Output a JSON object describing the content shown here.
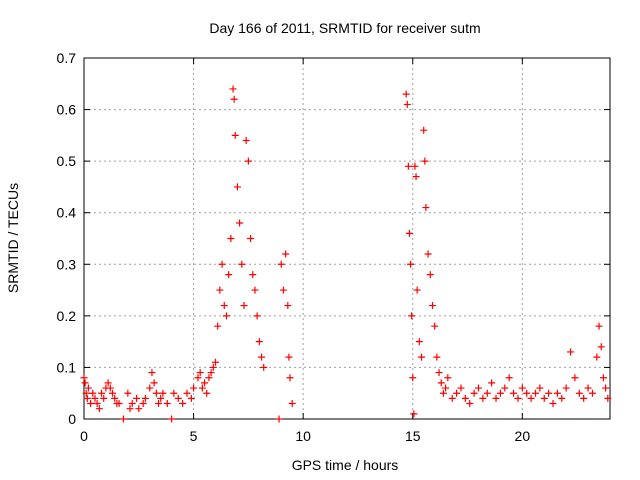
{
  "chart_data": {
    "type": "scatter",
    "title": "Day 166 of 2011, SRMTID for receiver sutm",
    "xlabel": "GPS time / hours",
    "ylabel": "SRMTID / TECUs",
    "xlim": [
      0,
      24
    ],
    "ylim": [
      0,
      0.7
    ],
    "xticks": [
      0,
      5,
      10,
      15,
      20
    ],
    "yticks": [
      0,
      0.1,
      0.2,
      0.3,
      0.4,
      0.5,
      0.6,
      0.7
    ],
    "grid": true,
    "marker": "plus",
    "color": "#ff0000",
    "series": [
      {
        "points": [
          [
            0.0,
            0.08
          ],
          [
            0.05,
            0.07
          ],
          [
            0.1,
            0.05
          ],
          [
            0.15,
            0.04
          ],
          [
            0.2,
            0.06
          ],
          [
            0.3,
            0.03
          ],
          [
            0.4,
            0.05
          ],
          [
            0.5,
            0.04
          ],
          [
            0.6,
            0.03
          ],
          [
            0.7,
            0.02
          ],
          [
            0.8,
            0.05
          ],
          [
            0.9,
            0.04
          ],
          [
            1.0,
            0.06
          ],
          [
            1.1,
            0.07
          ],
          [
            1.2,
            0.06
          ],
          [
            1.3,
            0.05
          ],
          [
            1.4,
            0.04
          ],
          [
            1.5,
            0.03
          ],
          [
            1.6,
            0.03
          ],
          [
            1.8,
            0.0
          ],
          [
            2.0,
            0.05
          ],
          [
            2.1,
            0.02
          ],
          [
            2.2,
            0.03
          ],
          [
            2.4,
            0.04
          ],
          [
            2.5,
            0.02
          ],
          [
            2.7,
            0.03
          ],
          [
            2.8,
            0.04
          ],
          [
            3.0,
            0.06
          ],
          [
            3.1,
            0.09
          ],
          [
            3.2,
            0.07
          ],
          [
            3.3,
            0.05
          ],
          [
            3.4,
            0.03
          ],
          [
            3.5,
            0.04
          ],
          [
            3.6,
            0.05
          ],
          [
            3.8,
            0.03
          ],
          [
            4.0,
            0.0
          ],
          [
            4.1,
            0.05
          ],
          [
            4.3,
            0.04
          ],
          [
            4.5,
            0.03
          ],
          [
            4.7,
            0.05
          ],
          [
            4.9,
            0.04
          ],
          [
            5.0,
            0.06
          ],
          [
            5.2,
            0.08
          ],
          [
            5.3,
            0.09
          ],
          [
            5.4,
            0.06
          ],
          [
            5.5,
            0.07
          ],
          [
            5.6,
            0.05
          ],
          [
            5.7,
            0.08
          ],
          [
            5.8,
            0.09
          ],
          [
            5.9,
            0.1
          ],
          [
            6.0,
            0.11
          ],
          [
            6.1,
            0.18
          ],
          [
            6.2,
            0.25
          ],
          [
            6.3,
            0.3
          ],
          [
            6.4,
            0.22
          ],
          [
            6.5,
            0.2
          ],
          [
            6.6,
            0.28
          ],
          [
            6.7,
            0.35
          ],
          [
            6.8,
            0.64
          ],
          [
            6.85,
            0.62
          ],
          [
            6.9,
            0.55
          ],
          [
            7.0,
            0.45
          ],
          [
            7.1,
            0.38
          ],
          [
            7.2,
            0.3
          ],
          [
            7.3,
            0.22
          ],
          [
            7.4,
            0.54
          ],
          [
            7.5,
            0.5
          ],
          [
            7.6,
            0.35
          ],
          [
            7.7,
            0.28
          ],
          [
            7.8,
            0.25
          ],
          [
            7.9,
            0.2
          ],
          [
            8.0,
            0.15
          ],
          [
            8.1,
            0.12
          ],
          [
            8.2,
            0.1
          ],
          [
            8.9,
            0.0
          ],
          [
            9.0,
            0.3
          ],
          [
            9.1,
            0.25
          ],
          [
            9.2,
            0.32
          ],
          [
            9.3,
            0.22
          ],
          [
            9.35,
            0.12
          ],
          [
            9.4,
            0.08
          ],
          [
            9.5,
            0.03
          ],
          [
            14.7,
            0.63
          ],
          [
            14.75,
            0.61
          ],
          [
            14.8,
            0.49
          ],
          [
            14.85,
            0.36
          ],
          [
            14.9,
            0.3
          ],
          [
            14.95,
            0.2
          ],
          [
            15.0,
            0.08
          ],
          [
            15.05,
            0.01
          ],
          [
            15.1,
            0.49
          ],
          [
            15.15,
            0.47
          ],
          [
            15.2,
            0.25
          ],
          [
            15.3,
            0.15
          ],
          [
            15.4,
            0.12
          ],
          [
            15.5,
            0.56
          ],
          [
            15.55,
            0.5
          ],
          [
            15.6,
            0.41
          ],
          [
            15.7,
            0.32
          ],
          [
            15.8,
            0.28
          ],
          [
            15.9,
            0.22
          ],
          [
            16.0,
            0.18
          ],
          [
            16.1,
            0.12
          ],
          [
            16.2,
            0.09
          ],
          [
            16.3,
            0.07
          ],
          [
            16.4,
            0.05
          ],
          [
            16.5,
            0.06
          ],
          [
            16.6,
            0.08
          ],
          [
            16.8,
            0.04
          ],
          [
            17.0,
            0.05
          ],
          [
            17.2,
            0.06
          ],
          [
            17.4,
            0.04
          ],
          [
            17.6,
            0.03
          ],
          [
            17.8,
            0.05
          ],
          [
            18.0,
            0.06
          ],
          [
            18.2,
            0.04
          ],
          [
            18.4,
            0.05
          ],
          [
            18.6,
            0.07
          ],
          [
            18.8,
            0.04
          ],
          [
            19.0,
            0.05
          ],
          [
            19.2,
            0.06
          ],
          [
            19.4,
            0.08
          ],
          [
            19.6,
            0.05
          ],
          [
            19.8,
            0.04
          ],
          [
            20.0,
            0.06
          ],
          [
            20.2,
            0.05
          ],
          [
            20.4,
            0.04
          ],
          [
            20.6,
            0.05
          ],
          [
            20.8,
            0.06
          ],
          [
            21.0,
            0.04
          ],
          [
            21.2,
            0.05
          ],
          [
            21.4,
            0.03
          ],
          [
            21.6,
            0.05
          ],
          [
            21.8,
            0.04
          ],
          [
            22.0,
            0.06
          ],
          [
            22.2,
            0.13
          ],
          [
            22.4,
            0.08
          ],
          [
            22.6,
            0.05
          ],
          [
            22.8,
            0.04
          ],
          [
            23.0,
            0.06
          ],
          [
            23.2,
            0.05
          ],
          [
            23.4,
            0.12
          ],
          [
            23.5,
            0.18
          ],
          [
            23.6,
            0.14
          ],
          [
            23.7,
            0.08
          ],
          [
            23.8,
            0.06
          ],
          [
            23.9,
            0.04
          ]
        ]
      }
    ]
  }
}
